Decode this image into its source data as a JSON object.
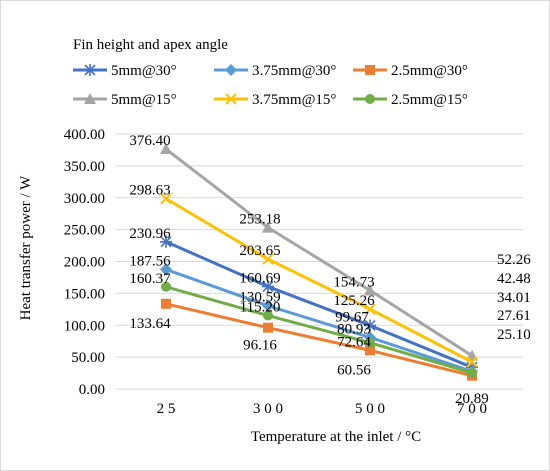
{
  "chart_data": {
    "type": "line",
    "legend_title": "Fin height and apex angle",
    "legend_position": "top",
    "xlabel": "Temperature at the inlet / °C",
    "ylabel": "Heat transfer power / W",
    "categories": [
      "2 5",
      "3 0 0",
      "5 0 0",
      "7 0 0"
    ],
    "ylim": [
      0,
      400
    ],
    "yticks": [
      "0.00",
      "50.00",
      "100.00",
      "150.00",
      "200.00",
      "250.00",
      "300.00",
      "350.00",
      "400.00"
    ],
    "grid": "horizontal",
    "series": [
      {
        "name": "5mm@30°",
        "marker": "star",
        "color": "#4472C4",
        "values": [
          230.96,
          160.69,
          99.67,
          34.01
        ],
        "labels": [
          "230.96",
          "160.69",
          "99.67",
          "34.01"
        ]
      },
      {
        "name": "3.75mm@30°",
        "marker": "diamond",
        "color": "#5B9BD5",
        "values": [
          187.56,
          130.59,
          80.93,
          27.61
        ],
        "labels": [
          "187.56",
          "130.59",
          "80.93",
          "27.61"
        ]
      },
      {
        "name": "2.5mm@30°",
        "marker": "square",
        "color": "#ED7D31",
        "values": [
          133.64,
          96.16,
          60.56,
          20.89
        ],
        "labels": [
          "133.64",
          "96.16",
          "60.56",
          "20.89"
        ]
      },
      {
        "name": "5mm@15°",
        "marker": "triangle",
        "color": "#A5A5A5",
        "values": [
          376.4,
          253.18,
          154.73,
          52.26
        ],
        "labels": [
          "376.40",
          "253.18",
          "154.73",
          "52.26"
        ]
      },
      {
        "name": "3.75mm@15°",
        "marker": "x",
        "color": "#FFC000",
        "values": [
          298.63,
          203.65,
          125.26,
          42.48
        ],
        "labels": [
          "298.63",
          "203.65",
          "125.26",
          "42.48"
        ]
      },
      {
        "name": "2.5mm@15°",
        "marker": "circle",
        "color": "#70AD47",
        "values": [
          160.37,
          115.2,
          72.64,
          25.1
        ],
        "labels": [
          "160.37",
          "115.20",
          "72.64",
          "25.10"
        ]
      }
    ]
  }
}
